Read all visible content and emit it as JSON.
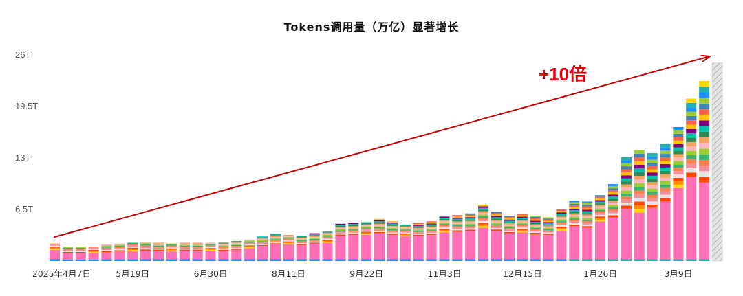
{
  "chart_data": {
    "type": "bar",
    "stacked": true,
    "title": "Tokens调用量（万亿）显著增长",
    "xlabel": "",
    "ylabel": "",
    "ylim": [
      0,
      26
    ],
    "y_ticks": [
      "6.5T",
      "13T",
      "19.5T",
      "26T"
    ],
    "y_tick_values": [
      6.5,
      13,
      19.5,
      26
    ],
    "x_tick_labels": [
      {
        "index": 0,
        "label": "2025年4月7日"
      },
      {
        "index": 6,
        "label": "5月19日"
      },
      {
        "index": 12,
        "label": "6月30日"
      },
      {
        "index": 18,
        "label": "8月11日"
      },
      {
        "index": 24,
        "label": "9月22日"
      },
      {
        "index": 30,
        "label": "11月3日"
      },
      {
        "index": 36,
        "label": "12月15日"
      },
      {
        "index": 42,
        "label": "1月26日"
      },
      {
        "index": 48,
        "label": "3月9日"
      }
    ],
    "totals": [
      2.2,
      1.8,
      1.8,
      1.8,
      2.1,
      2.2,
      2.3,
      2.4,
      2.3,
      2.2,
      2.3,
      2.3,
      2.3,
      2.3,
      2.5,
      2.7,
      3.1,
      3.4,
      3.3,
      3.2,
      3.5,
      3.7,
      4.7,
      4.8,
      4.9,
      5.3,
      5.0,
      4.6,
      4.8,
      5.0,
      5.6,
      5.8,
      6.0,
      7.1,
      6.2,
      5.7,
      5.9,
      5.7,
      5.5,
      6.5,
      7.6,
      7.5,
      8.3,
      9.7,
      13.1,
      14.0,
      13.6,
      14.8,
      16.9,
      20.5,
      22.7
    ],
    "base_values": [
      1.4,
      1.0,
      1.0,
      1.0,
      1.1,
      1.2,
      1.2,
      1.3,
      1.3,
      1.2,
      1.3,
      1.3,
      1.3,
      1.3,
      1.4,
      1.6,
      1.9,
      2.1,
      2.1,
      2.0,
      2.2,
      2.3,
      3.2,
      3.3,
      3.3,
      3.5,
      3.3,
      3.1,
      3.2,
      3.3,
      3.6,
      3.7,
      3.8,
      4.2,
      3.8,
      3.5,
      3.6,
      3.4,
      3.3,
      3.8,
      4.4,
      4.2,
      5.0,
      5.5,
      6.6,
      6.1,
      6.7,
      7.5,
      9.2,
      10.6,
      9.9
    ],
    "base_series_color": "#ff6fb5",
    "segment_colors": [
      "#1e90ff",
      "#20b2aa",
      "#ffd700",
      "#ff8c00",
      "#ff4500",
      "#e8e3e3",
      "#f28e9c",
      "#ff7f50",
      "#3cb371",
      "#9acd32",
      "#ffb6c1",
      "#f4a460",
      "#2e8b57",
      "#00c2a8",
      "#800080",
      "#ffc000",
      "#ff6347",
      "#4682b4",
      "#9acd32"
    ],
    "last_bar_hatched": {
      "index": 51,
      "value": 25.0
    },
    "trend_arrow": {
      "from": [
        0,
        3.0
      ],
      "to": [
        51.2,
        25.8
      ]
    },
    "annotation": "+10倍",
    "annotation_color": "#e8000b"
  }
}
